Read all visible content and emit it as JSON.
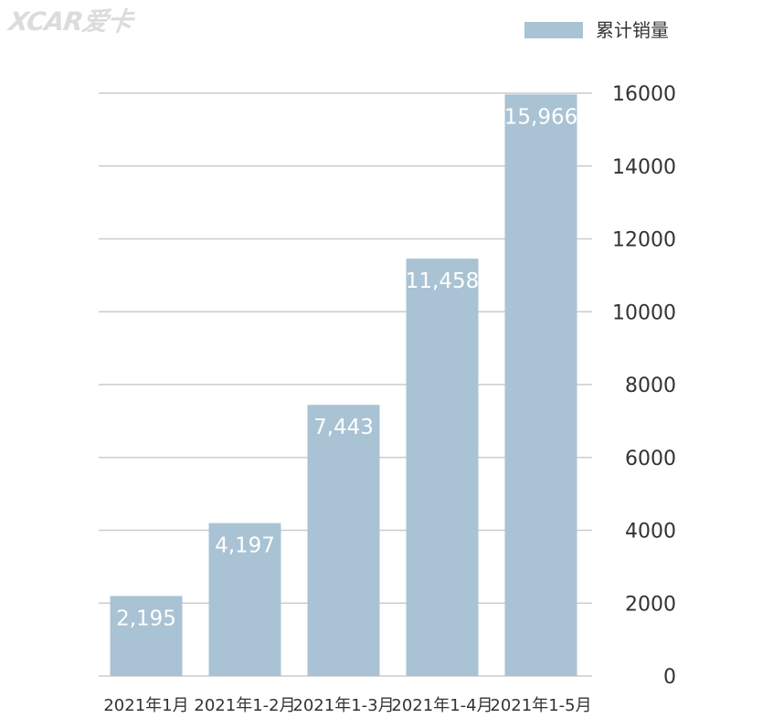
{
  "watermark": "XCAR爱卡",
  "chart_data": {
    "type": "bar",
    "categories": [
      "2021年1月",
      "2021年1-2月",
      "2021年1-3月",
      "2021年1-4月",
      "2021年1-5月"
    ],
    "series": [
      {
        "name": "累计销量",
        "values": [
          2195,
          4197,
          7443,
          11458,
          15966
        ],
        "labels": [
          "2,195",
          "4,197",
          "7,443",
          "11,458",
          "15,966"
        ],
        "color": "#a9c3d4"
      }
    ],
    "ylim": [
      0,
      16000
    ],
    "yticks": [
      0,
      2000,
      4000,
      6000,
      8000,
      10000,
      12000,
      14000,
      16000
    ],
    "y_axis_side": "right",
    "grid": true,
    "legend": "top-right",
    "colors": {
      "bar": "#a9c3d4",
      "grid": "#cccccc",
      "tick_text": "#333333",
      "data_label": "#ffffff"
    }
  }
}
